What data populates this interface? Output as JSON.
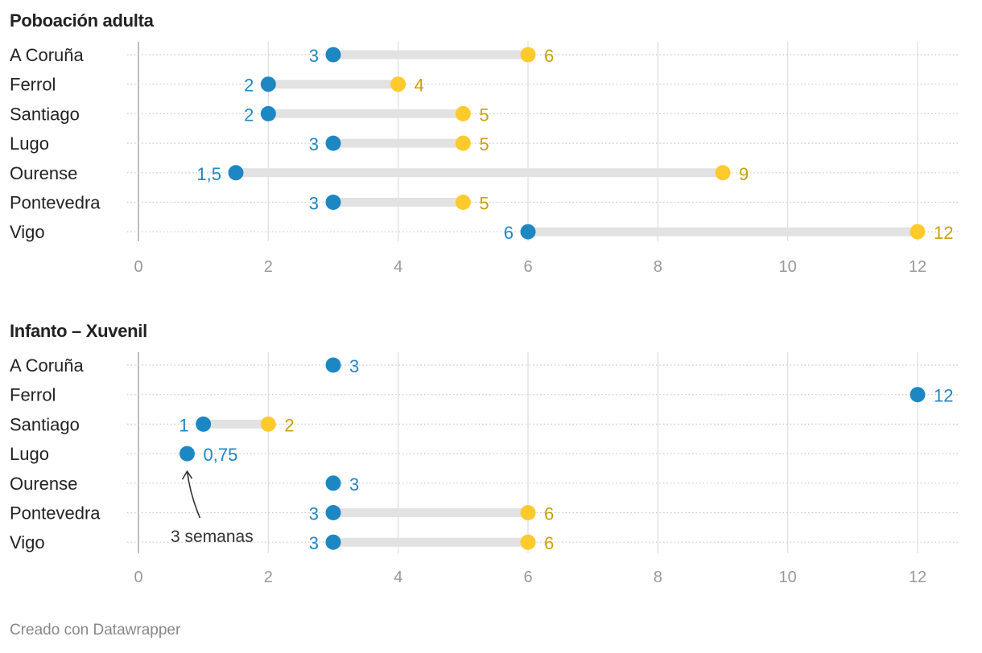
{
  "colors": {
    "min": "#1C87C3",
    "max": "#FFCA2C",
    "min_text": "#1C87C3",
    "max_text": "#C9A008",
    "range_bar": "#E2E2E2",
    "grid": "#E0E0E0",
    "axis": "#BDBDBD"
  },
  "chart_data": [
    {
      "type": "dumbbell",
      "title": "Poboación adulta",
      "x_ticks": [
        0,
        2,
        4,
        6,
        8,
        10,
        12
      ],
      "x_tick_labels": [
        "0",
        "2",
        "4",
        "6",
        "8",
        "10",
        "12"
      ],
      "xlim": [
        0,
        12
      ],
      "rows": [
        {
          "label": "A Coruña",
          "min": 3,
          "max": 6,
          "min_label": "3",
          "max_label": "6"
        },
        {
          "label": "Ferrol",
          "min": 2,
          "max": 4,
          "min_label": "2",
          "max_label": "4"
        },
        {
          "label": "Santiago",
          "min": 2,
          "max": 5,
          "min_label": "2",
          "max_label": "5"
        },
        {
          "label": "Lugo",
          "min": 3,
          "max": 5,
          "min_label": "3",
          "max_label": "5"
        },
        {
          "label": "Ourense",
          "min": 1.5,
          "max": 9,
          "min_label": "1,5",
          "max_label": "9"
        },
        {
          "label": "Pontevedra",
          "min": 3,
          "max": 5,
          "min_label": "3",
          "max_label": "5"
        },
        {
          "label": "Vigo",
          "min": 6,
          "max": 12,
          "min_label": "6",
          "max_label": "12"
        }
      ]
    },
    {
      "type": "dumbbell",
      "title": "Infanto – Xuvenil",
      "x_ticks": [
        0,
        2,
        4,
        6,
        8,
        10,
        12
      ],
      "x_tick_labels": [
        "0",
        "2",
        "4",
        "6",
        "8",
        "10",
        "12"
      ],
      "xlim": [
        0,
        12
      ],
      "annotation": {
        "text": "3 semanas",
        "row": "Lugo",
        "value": 0.75
      },
      "rows": [
        {
          "label": "A Coruña",
          "min": 3,
          "max": null,
          "min_label": "3",
          "max_label": null
        },
        {
          "label": "Ferrol",
          "min": 12,
          "max": null,
          "min_label": "12",
          "max_label": null
        },
        {
          "label": "Santiago",
          "min": 1,
          "max": 2,
          "min_label": "1",
          "max_label": "2"
        },
        {
          "label": "Lugo",
          "min": 0.75,
          "max": null,
          "min_label": "0,75",
          "max_label": null
        },
        {
          "label": "Ourense",
          "min": 3,
          "max": null,
          "min_label": "3",
          "max_label": null
        },
        {
          "label": "Pontevedra",
          "min": 3,
          "max": 6,
          "min_label": "3",
          "max_label": "6"
        },
        {
          "label": "Vigo",
          "min": 3,
          "max": 6,
          "min_label": "3",
          "max_label": "6"
        }
      ]
    }
  ],
  "footer": {
    "credit": "Creado con Datawrapper"
  }
}
